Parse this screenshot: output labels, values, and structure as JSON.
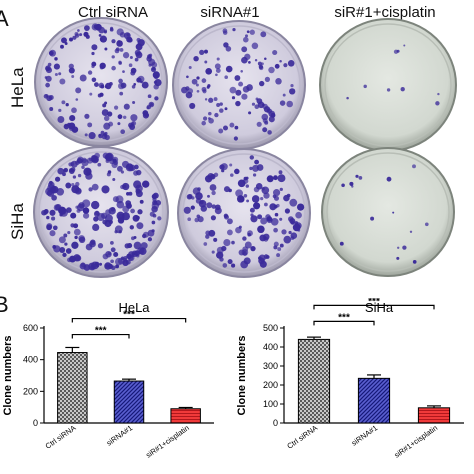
{
  "panel_a": {
    "letter": "A",
    "column_headers": [
      "Ctrl siRNA",
      "siRNA#1",
      "siR#1+cisplatin"
    ],
    "row_labels": [
      "HeLa",
      "SiHa"
    ]
  },
  "panel_b": {
    "letter": "B"
  },
  "colors": {
    "dish_bg": "#d9d6e6",
    "dish_bg_pale": "#dde3dc",
    "colony": "#3a2a9a",
    "bar_ctrl": "#9a9a9a",
    "bar_sirna": "#2b2fa8",
    "bar_cisplatin": "#e0202a"
  },
  "chart_data": [
    {
      "type": "bar",
      "title": "HeLa",
      "ylabel": "Clone numbers",
      "categories": [
        "Ctrl siRNA",
        "siRNA#1",
        "siR#1+cisplatin"
      ],
      "values": [
        445,
        265,
        90
      ],
      "errors": [
        32,
        12,
        8
      ],
      "ylim": [
        0,
        600
      ],
      "yticks": [
        "0",
        "200",
        "400",
        "600"
      ],
      "significance": [
        "***",
        "***"
      ]
    },
    {
      "type": "bar",
      "title": "SiHa",
      "ylabel": "Clone numbers",
      "categories": [
        "Ctrl siRNA",
        "siRNA#1",
        "siR#1+cisplatin"
      ],
      "values": [
        440,
        235,
        80
      ],
      "errors": [
        12,
        18,
        10
      ],
      "ylim": [
        0,
        500
      ],
      "yticks": [
        "0",
        "100",
        "200",
        "300",
        "400",
        "500"
      ],
      "significance": [
        "***",
        "***"
      ]
    }
  ]
}
